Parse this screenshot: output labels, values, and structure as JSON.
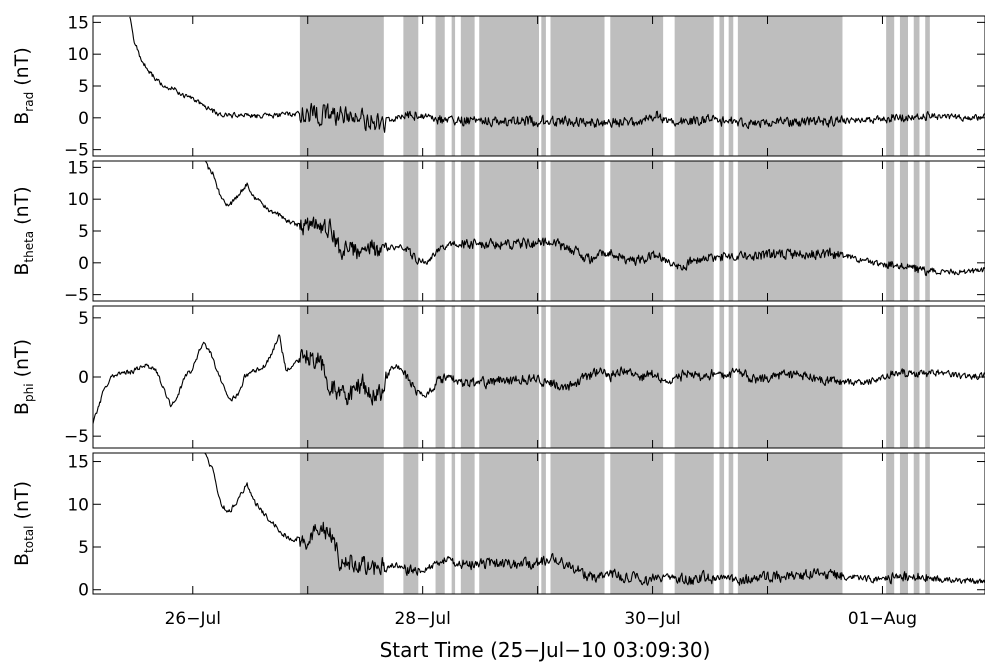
{
  "chart_data": {
    "type": "line",
    "x_axis": {
      "title": "Start Time (25-Jul-10 03:09:30)",
      "unit": "days since start time",
      "range_days": [
        0,
        7.76
      ],
      "tick_labels": [
        "26-Jul",
        "28-Jul",
        "30-Jul",
        "01-Aug"
      ],
      "tick_days": [
        0.868,
        2.868,
        4.868,
        6.868
      ],
      "minor_tick_days": [
        1.868,
        3.868,
        5.868
      ]
    },
    "shaded_intervals_days": [
      [
        1.8,
        2.53
      ],
      [
        2.7,
        2.83
      ],
      [
        2.98,
        3.06
      ],
      [
        3.12,
        3.15
      ],
      [
        3.2,
        3.32
      ],
      [
        3.36,
        3.88
      ],
      [
        3.9,
        3.94
      ],
      [
        3.98,
        4.45
      ],
      [
        4.5,
        4.96
      ],
      [
        5.06,
        5.4
      ],
      [
        5.45,
        5.49
      ],
      [
        5.53,
        5.57
      ],
      [
        5.61,
        6.52
      ],
      [
        6.9,
        6.97
      ],
      [
        7.02,
        7.09
      ],
      [
        7.14,
        7.19
      ],
      [
        7.24,
        7.28
      ]
    ],
    "panels": [
      {
        "name": "B_rad",
        "ylabel": "B",
        "ylabel_sub": "rad",
        "ylabel_unit": "(nT)",
        "ylim": [
          -6,
          16
        ],
        "yticks": [
          15,
          10,
          5,
          0,
          -5
        ],
        "data_start_day": 0.32,
        "points": [
          [
            0.32,
            16
          ],
          [
            0.36,
            12
          ],
          [
            0.42,
            9
          ],
          [
            0.48,
            7.5
          ],
          [
            0.55,
            6
          ],
          [
            0.62,
            5
          ],
          [
            0.7,
            4.5
          ],
          [
            0.8,
            3.5
          ],
          [
            0.9,
            2.5
          ],
          [
            1.0,
            1.5
          ],
          [
            1.1,
            0.5
          ],
          [
            1.2,
            0.3
          ],
          [
            1.3,
            0.6
          ],
          [
            1.4,
            0.2
          ],
          [
            1.5,
            0.5
          ],
          [
            1.6,
            0.3
          ],
          [
            1.7,
            0.6
          ],
          [
            1.8,
            0.6
          ],
          [
            2.0,
            0.5
          ],
          [
            2.2,
            0.3
          ],
          [
            2.4,
            -0.3
          ],
          [
            2.55,
            -0.6
          ],
          [
            2.7,
            0.2
          ],
          [
            2.8,
            0.5
          ],
          [
            3.0,
            -0.2
          ],
          [
            3.2,
            -0.4
          ],
          [
            3.4,
            -0.5
          ],
          [
            3.6,
            -0.6
          ],
          [
            3.8,
            -0.5
          ],
          [
            4.0,
            -0.6
          ],
          [
            4.2,
            -0.5
          ],
          [
            4.4,
            -0.8
          ],
          [
            4.6,
            -0.7
          ],
          [
            4.8,
            -0.4
          ],
          [
            4.9,
            0.8
          ],
          [
            5.0,
            -0.6
          ],
          [
            5.2,
            -0.5
          ],
          [
            5.4,
            -0.4
          ],
          [
            5.6,
            -0.7
          ],
          [
            5.8,
            -0.8
          ],
          [
            6.0,
            -0.7
          ],
          [
            6.2,
            -0.7
          ],
          [
            6.4,
            -0.6
          ],
          [
            6.6,
            -0.5
          ],
          [
            6.8,
            -0.3
          ],
          [
            7.0,
            0.1
          ],
          [
            7.2,
            0.3
          ],
          [
            7.4,
            0.2
          ],
          [
            7.6,
            0
          ],
          [
            7.8,
            0.2
          ],
          [
            8.0,
            0.3
          ],
          [
            8.2,
            0.5
          ],
          [
            8.4,
            0.2
          ],
          [
            8.6,
            0.3
          ],
          [
            8.8,
            0
          ],
          [
            9.0,
            0.3
          ],
          [
            9.2,
            -0.3
          ],
          [
            9.4,
            -0.5
          ],
          [
            9.58,
            -0.4
          ]
        ]
      },
      {
        "name": "B_theta",
        "ylabel": "B",
        "ylabel_sub": "theta",
        "ylabel_unit": "(nT)",
        "ylim": [
          -6,
          16
        ],
        "yticks": [
          15,
          10,
          5,
          0,
          -5
        ],
        "data_start_day": 0.97,
        "points": [
          [
            0.97,
            16
          ],
          [
            1.0,
            15
          ],
          [
            1.05,
            14
          ],
          [
            1.08,
            12
          ],
          [
            1.12,
            10
          ],
          [
            1.18,
            9
          ],
          [
            1.24,
            10
          ],
          [
            1.3,
            11.5
          ],
          [
            1.34,
            12.5
          ],
          [
            1.38,
            11
          ],
          [
            1.42,
            10
          ],
          [
            1.48,
            9
          ],
          [
            1.55,
            8
          ],
          [
            1.62,
            7.5
          ],
          [
            1.7,
            6.5
          ],
          [
            1.78,
            6
          ],
          [
            1.85,
            5.5
          ],
          [
            1.95,
            5.5
          ],
          [
            2.0,
            6
          ],
          [
            2.05,
            5.5
          ],
          [
            2.1,
            4.5
          ],
          [
            2.15,
            1.5
          ],
          [
            2.2,
            2
          ],
          [
            2.3,
            1.5
          ],
          [
            2.4,
            2.5
          ],
          [
            2.5,
            2
          ],
          [
            2.6,
            2.5
          ],
          [
            2.7,
            2.5
          ],
          [
            2.8,
            1
          ],
          [
            2.9,
            0
          ],
          [
            3.0,
            2
          ],
          [
            3.1,
            3
          ],
          [
            3.2,
            3
          ],
          [
            3.4,
            3
          ],
          [
            3.6,
            3
          ],
          [
            3.8,
            3
          ],
          [
            4.0,
            3.2
          ],
          [
            4.1,
            2.5
          ],
          [
            4.2,
            2
          ],
          [
            4.3,
            0.5
          ],
          [
            4.4,
            1
          ],
          [
            4.5,
            1.5
          ],
          [
            4.6,
            0.8
          ],
          [
            4.7,
            0.5
          ],
          [
            4.8,
            0.5
          ],
          [
            4.9,
            1
          ],
          [
            5.0,
            0.2
          ],
          [
            5.1,
            -0.5
          ],
          [
            5.15,
            -0.8
          ],
          [
            5.2,
            0.3
          ],
          [
            5.3,
            1
          ],
          [
            5.4,
            0.5
          ],
          [
            5.5,
            1
          ],
          [
            5.6,
            0.8
          ],
          [
            5.8,
            1.2
          ],
          [
            6.0,
            1.2
          ],
          [
            6.2,
            1.5
          ],
          [
            6.4,
            1.5
          ],
          [
            6.6,
            0.8
          ],
          [
            6.8,
            0
          ],
          [
            7.0,
            -0.5
          ],
          [
            7.2,
            -1
          ],
          [
            7.4,
            -1.5
          ],
          [
            7.6,
            -1.5
          ],
          [
            7.8,
            -1
          ],
          [
            8.0,
            -0.5
          ],
          [
            8.2,
            0
          ],
          [
            8.4,
            0.5
          ],
          [
            8.6,
            0.6
          ],
          [
            8.8,
            0.8
          ],
          [
            9.0,
            0.8
          ],
          [
            9.2,
            0.7
          ],
          [
            9.4,
            0.5
          ],
          [
            9.58,
            0.6
          ]
        ]
      },
      {
        "name": "B_phi",
        "ylabel": "B",
        "ylabel_sub": "phi",
        "ylabel_unit": "(nT)",
        "ylim": [
          -6,
          6
        ],
        "yticks": [
          5,
          0,
          -5
        ],
        "data_start_day": 0.0,
        "points": [
          [
            0.0,
            -3.8
          ],
          [
            0.05,
            -2.5
          ],
          [
            0.1,
            -1
          ],
          [
            0.15,
            0
          ],
          [
            0.25,
            0.3
          ],
          [
            0.35,
            0.5
          ],
          [
            0.45,
            1
          ],
          [
            0.55,
            0.5
          ],
          [
            0.62,
            -1
          ],
          [
            0.68,
            -2.5
          ],
          [
            0.74,
            -1.5
          ],
          [
            0.8,
            0
          ],
          [
            0.85,
            0.5
          ],
          [
            0.9,
            1.5
          ],
          [
            0.96,
            3
          ],
          [
            1.02,
            2
          ],
          [
            1.06,
            1
          ],
          [
            1.1,
            0
          ],
          [
            1.15,
            -1
          ],
          [
            1.2,
            -2
          ],
          [
            1.26,
            -1.5
          ],
          [
            1.32,
            0
          ],
          [
            1.4,
            0.5
          ],
          [
            1.5,
            1
          ],
          [
            1.56,
            2
          ],
          [
            1.62,
            3.5
          ],
          [
            1.68,
            0.5
          ],
          [
            1.74,
            1
          ],
          [
            1.8,
            1.5
          ],
          [
            1.86,
            2
          ],
          [
            1.92,
            1.5
          ],
          [
            1.98,
            1.5
          ],
          [
            2.04,
            -0.5
          ],
          [
            2.1,
            -1
          ],
          [
            2.16,
            -1.5
          ],
          [
            2.22,
            -2
          ],
          [
            2.28,
            -1
          ],
          [
            2.34,
            -0.5
          ],
          [
            2.42,
            -1.5
          ],
          [
            2.5,
            -1.5
          ],
          [
            2.6,
            1
          ],
          [
            2.7,
            0.5
          ],
          [
            2.8,
            -1
          ],
          [
            2.9,
            -1.5
          ],
          [
            3.0,
            -0.5
          ],
          [
            3.1,
            0
          ],
          [
            3.2,
            -0.5
          ],
          [
            3.3,
            -0.5
          ],
          [
            3.4,
            -0.5
          ],
          [
            3.6,
            -0.3
          ],
          [
            3.8,
            -0.2
          ],
          [
            4.0,
            -0.5
          ],
          [
            4.1,
            -1
          ],
          [
            4.2,
            -0.5
          ],
          [
            4.3,
            0
          ],
          [
            4.4,
            0.5
          ],
          [
            4.5,
            0
          ],
          [
            4.6,
            0.5
          ],
          [
            4.7,
            0.3
          ],
          [
            4.8,
            0
          ],
          [
            4.9,
            0.3
          ],
          [
            5.0,
            -0.5
          ],
          [
            5.1,
            0
          ],
          [
            5.2,
            0.5
          ],
          [
            5.3,
            0
          ],
          [
            5.4,
            0.3
          ],
          [
            5.5,
            0
          ],
          [
            5.6,
            0.5
          ],
          [
            5.7,
            0
          ],
          [
            5.8,
            -0.2
          ],
          [
            6.0,
            0.2
          ],
          [
            6.2,
            0
          ],
          [
            6.4,
            -0.3
          ],
          [
            6.6,
            -0.5
          ],
          [
            6.8,
            -0.3
          ],
          [
            7.0,
            0.3
          ],
          [
            7.2,
            0.5
          ],
          [
            7.4,
            0.3
          ],
          [
            7.6,
            0
          ],
          [
            7.8,
            0.2
          ],
          [
            8.0,
            0.5
          ],
          [
            8.2,
            0.3
          ],
          [
            8.4,
            0.5
          ],
          [
            8.6,
            0
          ],
          [
            8.8,
            0.3
          ],
          [
            9.0,
            -0.2
          ],
          [
            9.2,
            0.2
          ],
          [
            9.4,
            0.5
          ],
          [
            9.58,
            0.3
          ]
        ]
      },
      {
        "name": "B_total",
        "ylabel": "B",
        "ylabel_sub": "total",
        "ylabel_unit": "(nT)",
        "ylim": [
          -0.5,
          16
        ],
        "yticks": [
          15,
          10,
          5,
          0
        ],
        "data_start_day": 0.97,
        "points": [
          [
            0.97,
            16
          ],
          [
            1.0,
            15
          ],
          [
            1.05,
            14
          ],
          [
            1.08,
            12
          ],
          [
            1.12,
            10
          ],
          [
            1.18,
            9
          ],
          [
            1.24,
            10
          ],
          [
            1.3,
            11.5
          ],
          [
            1.34,
            12.5
          ],
          [
            1.38,
            11
          ],
          [
            1.42,
            10
          ],
          [
            1.48,
            9
          ],
          [
            1.55,
            8
          ],
          [
            1.62,
            7
          ],
          [
            1.7,
            6
          ],
          [
            1.78,
            6
          ],
          [
            1.85,
            6
          ],
          [
            1.95,
            6.5
          ],
          [
            2.0,
            7
          ],
          [
            2.05,
            6.5
          ],
          [
            2.1,
            6
          ],
          [
            2.15,
            3
          ],
          [
            2.2,
            3.5
          ],
          [
            2.3,
            3
          ],
          [
            2.4,
            2.5
          ],
          [
            2.5,
            2.5
          ],
          [
            2.6,
            3
          ],
          [
            2.7,
            2.5
          ],
          [
            2.8,
            2
          ],
          [
            2.9,
            2.5
          ],
          [
            3.0,
            3
          ],
          [
            3.1,
            3.5
          ],
          [
            3.2,
            3
          ],
          [
            3.4,
            3
          ],
          [
            3.6,
            3
          ],
          [
            3.8,
            3
          ],
          [
            4.0,
            3.5
          ],
          [
            4.1,
            3
          ],
          [
            4.2,
            2.5
          ],
          [
            4.3,
            1.5
          ],
          [
            4.4,
            1.5
          ],
          [
            4.5,
            2
          ],
          [
            4.6,
            1.5
          ],
          [
            4.7,
            1.5
          ],
          [
            4.8,
            1
          ],
          [
            4.9,
            1.5
          ],
          [
            5.0,
            1.5
          ],
          [
            5.1,
            1.5
          ],
          [
            5.2,
            1
          ],
          [
            5.3,
            1.5
          ],
          [
            5.4,
            1.2
          ],
          [
            5.5,
            1.5
          ],
          [
            5.6,
            1
          ],
          [
            5.8,
            1.5
          ],
          [
            6.0,
            1.5
          ],
          [
            6.2,
            1.8
          ],
          [
            6.4,
            1.8
          ],
          [
            6.6,
            1.5
          ],
          [
            6.8,
            1.2
          ],
          [
            7.0,
            1.5
          ],
          [
            7.2,
            1.5
          ],
          [
            7.4,
            1.2
          ],
          [
            7.6,
            1
          ],
          [
            7.8,
            1
          ],
          [
            8.0,
            0.8
          ],
          [
            8.2,
            0.8
          ],
          [
            8.4,
            0.9
          ],
          [
            8.6,
            0.8
          ],
          [
            8.8,
            0.9
          ],
          [
            9.0,
            0.9
          ],
          [
            9.2,
            0.8
          ],
          [
            9.4,
            0.7
          ],
          [
            9.58,
            0.8
          ]
        ]
      }
    ]
  }
}
